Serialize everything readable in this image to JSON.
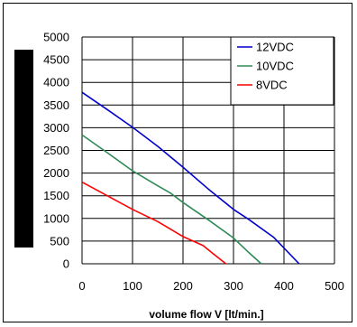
{
  "chart_data": {
    "type": "line",
    "title": "",
    "xlabel": "volume flow V  [lt/min.]",
    "ylabel": "",
    "xlim": [
      0,
      500
    ],
    "ylim": [
      0,
      5000
    ],
    "x_ticks": [
      0,
      100,
      200,
      300,
      400,
      500
    ],
    "y_ticks": [
      0,
      500,
      1000,
      1500,
      2000,
      2500,
      3000,
      3500,
      4000,
      4500,
      5000
    ],
    "grid": true,
    "legend_position": "top-right",
    "series": [
      {
        "name": "12VDC",
        "color": "#0000cc",
        "points": [
          [
            0,
            3780
          ],
          [
            50,
            3400
          ],
          [
            100,
            3010
          ],
          [
            150,
            2590
          ],
          [
            200,
            2130
          ],
          [
            250,
            1650
          ],
          [
            300,
            1200
          ],
          [
            330,
            980
          ],
          [
            380,
            580
          ],
          [
            430,
            0
          ]
        ]
      },
      {
        "name": "10VDC",
        "color": "#2e8b57",
        "points": [
          [
            0,
            2840
          ],
          [
            50,
            2450
          ],
          [
            100,
            2050
          ],
          [
            150,
            1720
          ],
          [
            175,
            1560
          ],
          [
            200,
            1350
          ],
          [
            250,
            970
          ],
          [
            300,
            570
          ],
          [
            330,
            250
          ],
          [
            355,
            0
          ]
        ]
      },
      {
        "name": "8VDC",
        "color": "#ff0000",
        "points": [
          [
            0,
            1800
          ],
          [
            50,
            1500
          ],
          [
            100,
            1200
          ],
          [
            150,
            930
          ],
          [
            200,
            600
          ],
          [
            240,
            400
          ],
          [
            260,
            220
          ],
          [
            285,
            0
          ]
        ]
      }
    ]
  }
}
